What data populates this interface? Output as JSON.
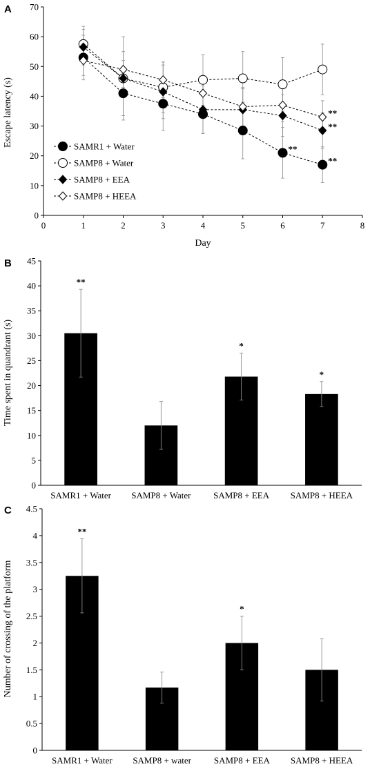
{
  "chart_data": [
    {
      "panel": "A",
      "type": "line",
      "xlabel": "Day",
      "ylabel": "Escape latency (s)",
      "xlim": [
        0,
        8
      ],
      "ylim": [
        0,
        70
      ],
      "xticks": [
        0,
        1,
        2,
        3,
        4,
        5,
        6,
        7,
        8
      ],
      "yticks": [
        0,
        10,
        20,
        30,
        40,
        50,
        60,
        70
      ],
      "grid": false,
      "legend_position": "bottom-left",
      "x": [
        1,
        2,
        3,
        4,
        5,
        6,
        7
      ],
      "series": [
        {
          "name": "SAMR1 + Water",
          "marker": "filled-circle",
          "values": [
            53,
            41,
            37.5,
            34,
            28.5,
            21,
            17
          ],
          "errors": [
            7.5,
            7.5,
            9,
            6.5,
            9.5,
            8.5,
            6
          ],
          "significance": [
            "",
            "",
            "",
            "",
            "",
            "**",
            "**"
          ]
        },
        {
          "name": "SAMP8 + Water",
          "marker": "open-circle",
          "values": [
            57.5,
            46,
            43,
            45.5,
            46,
            44,
            49
          ],
          "errors": [
            6,
            14,
            8.5,
            8.5,
            9,
            9,
            8.5
          ],
          "significance": [
            "",
            "",
            "",
            "",
            "",
            "",
            ""
          ]
        },
        {
          "name": "SAMP8 + EEA",
          "marker": "filled-diamond",
          "values": [
            56.5,
            46,
            41.5,
            35.5,
            35.5,
            33.5,
            28.5
          ],
          "errors": [
            6,
            6,
            9,
            8,
            7,
            7,
            6
          ],
          "significance": [
            "",
            "",
            "",
            "",
            "",
            "",
            "**"
          ]
        },
        {
          "name": "SAMP8 + HEEA",
          "marker": "open-diamond",
          "values": [
            52,
            49,
            45.5,
            41,
            36.5,
            37,
            33
          ],
          "errors": [
            5,
            6,
            6,
            6,
            6.5,
            5.5,
            5.5
          ],
          "significance": [
            "",
            "",
            "",
            "",
            "",
            "",
            "**"
          ]
        }
      ]
    },
    {
      "panel": "B",
      "type": "bar",
      "xlabel": "",
      "ylabel": "Time spent in quandrant (s)",
      "ylim": [
        0,
        45
      ],
      "yticks": [
        0,
        5,
        10,
        15,
        20,
        25,
        30,
        35,
        40,
        45
      ],
      "grid": false,
      "categories": [
        "SAMR1 + Water",
        "SAMP8 + Water",
        "SAMP8 + EEA",
        "SAMP8 + HEEA"
      ],
      "values": [
        30.5,
        12,
        21.8,
        18.3
      ],
      "errors": [
        8.8,
        4.8,
        4.7,
        2.5
      ],
      "significance": [
        "**",
        "",
        "*",
        "*"
      ]
    },
    {
      "panel": "C",
      "type": "bar",
      "xlabel": "",
      "ylabel": "Number of crossing of the platform",
      "ylim": [
        0,
        4.5
      ],
      "yticks": [
        0,
        0.5,
        1,
        1.5,
        2,
        2.5,
        3,
        3.5,
        4,
        4.5
      ],
      "grid": false,
      "categories": [
        "SAMR1 + Water",
        "SAMP8 + water",
        "SAMP8 + EEA",
        "SAMP8 + HEEA"
      ],
      "values": [
        3.25,
        1.17,
        2.0,
        1.5
      ],
      "errors": [
        0.69,
        0.29,
        0.5,
        0.58
      ],
      "significance": [
        "**",
        "",
        "*",
        ""
      ]
    }
  ]
}
